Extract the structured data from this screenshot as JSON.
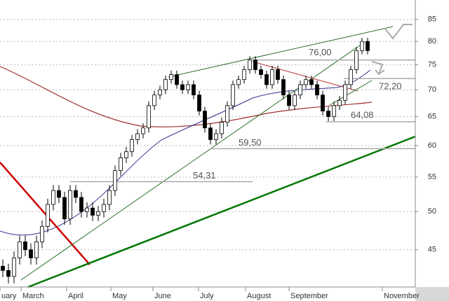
{
  "chart_data": {
    "type": "candlestick",
    "log_scale": true,
    "grid": true,
    "ylim": [
      40.6,
      89.7
    ],
    "yticks": [
      45,
      50,
      55,
      60,
      65,
      70,
      75,
      80,
      85
    ],
    "months": [
      "uary",
      "March",
      "April",
      "May",
      "June",
      "July",
      "August",
      "September",
      "November"
    ],
    "up_color": "#ffffff",
    "down_color": "#000000",
    "open": [
      43,
      42.5,
      41.8,
      44,
      46,
      45,
      44,
      46,
      48,
      51,
      53,
      52,
      49,
      53,
      52,
      50,
      50.5,
      49.5,
      50,
      51,
      53,
      56,
      58,
      59,
      61,
      62,
      63,
      67,
      69,
      70,
      72,
      73,
      71,
      70,
      71,
      69,
      66,
      63,
      61,
      62,
      64,
      67,
      71,
      72,
      74,
      76,
      74,
      73,
      71,
      74,
      72,
      69,
      67,
      69,
      71,
      72,
      71,
      69,
      66,
      65,
      67,
      68,
      71,
      74,
      78,
      80
    ],
    "high": [
      43.8,
      43.3,
      44.8,
      46.8,
      46.8,
      45.8,
      46.8,
      48.8,
      51.8,
      53.8,
      53.8,
      52.8,
      53.8,
      53.8,
      52.8,
      51.3,
      51.3,
      50.8,
      51.8,
      53.8,
      56.8,
      58.8,
      59.8,
      61.8,
      62.8,
      63.8,
      67.8,
      69.8,
      70.8,
      72.8,
      73.8,
      73.8,
      71.8,
      71.8,
      71.8,
      69.8,
      66.8,
      63.8,
      62.8,
      64.8,
      67.8,
      71.8,
      72.8,
      74.8,
      76.8,
      76.8,
      74.8,
      73.8,
      74.8,
      74.8,
      72.8,
      69.8,
      69.8,
      71.8,
      72.8,
      72.8,
      71.8,
      69.8,
      66.8,
      67.8,
      68.8,
      71.8,
      74.8,
      78.8,
      80.8,
      80.8
    ],
    "low": [
      41.7,
      41,
      41,
      43.2,
      44.2,
      43.2,
      43.2,
      45.2,
      47.2,
      50.2,
      51.2,
      48.2,
      48.2,
      51.2,
      49.2,
      49.2,
      48.7,
      48.7,
      49.2,
      50.2,
      52.2,
      55.2,
      57.2,
      58.2,
      60.2,
      61.2,
      62.2,
      66.2,
      68.2,
      69.2,
      71.2,
      70.2,
      69.2,
      69.2,
      68.2,
      65.2,
      62.2,
      60.2,
      60.2,
      61.2,
      63.2,
      66.2,
      70.2,
      71.2,
      73.2,
      73.2,
      72.2,
      70.2,
      70.2,
      71.2,
      68.2,
      66.2,
      66.2,
      68.2,
      70.2,
      70.2,
      68.2,
      65.2,
      64.2,
      64.2,
      66.2,
      67.2,
      70.2,
      73.2,
      77.2,
      77.2
    ],
    "close": [
      42.5,
      41.8,
      44,
      46,
      45,
      44,
      46,
      48,
      51,
      53,
      52,
      49,
      53,
      52,
      50,
      50.5,
      49.5,
      50,
      51,
      53,
      56,
      58,
      59,
      61,
      62,
      63,
      67,
      69,
      70,
      72,
      73,
      71,
      70,
      71,
      69,
      66,
      63,
      61,
      62,
      64,
      67,
      71,
      72,
      74,
      76,
      74,
      73,
      71,
      74,
      72,
      69,
      67,
      69,
      71,
      72,
      71,
      69,
      66,
      65,
      67,
      68,
      71,
      74,
      78,
      80,
      78
    ],
    "levels": {
      "values": [
        76,
        72.2,
        64.08,
        59.5,
        54.31
      ],
      "value_labels": [
        "76,00",
        "72,20",
        "64,08",
        "59,50",
        "54,31"
      ],
      "color": "#aaaaaa"
    }
  }
}
